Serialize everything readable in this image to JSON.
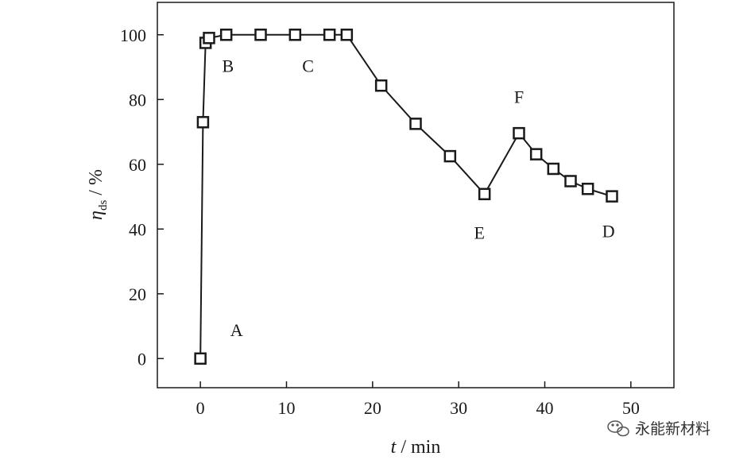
{
  "chart_data": {
    "type": "line",
    "x": [
      0,
      0.3,
      0.6,
      1,
      3,
      7,
      11,
      15,
      17,
      21,
      25,
      29,
      33,
      37,
      39,
      41,
      43,
      45,
      47.8
    ],
    "series": [
      {
        "values": [
          0,
          73,
          97.5,
          99,
          100,
          100,
          100,
          100,
          100,
          84.3,
          72.5,
          62.5,
          50.8,
          69.6,
          63.1,
          58.6,
          54.8,
          52.4,
          50.1
        ]
      }
    ],
    "xlabel": {
      "symbol": "t",
      "unit": " / min"
    },
    "ylabel": {
      "symbol": "η",
      "subscript": "ds",
      "unit": " / %"
    },
    "xlim": [
      -5,
      55
    ],
    "ylim": [
      -9,
      110
    ],
    "xticks": [
      "0",
      "10",
      "20",
      "30",
      "40",
      "50"
    ],
    "yticks": [
      "0",
      "20",
      "40",
      "60",
      "80",
      "100"
    ],
    "annotations": [
      {
        "text": "A",
        "x": 4.2,
        "y": 7
      },
      {
        "text": "B",
        "x": 3.2,
        "y": 88.5
      },
      {
        "text": "C",
        "x": 12.5,
        "y": 88.5
      },
      {
        "text": "E",
        "x": 32.4,
        "y": 37
      },
      {
        "text": "F",
        "x": 37,
        "y": 79
      },
      {
        "text": "D",
        "x": 47.4,
        "y": 37.5
      }
    ],
    "grid": false,
    "marker": "open-square",
    "line_color": "#1a1a1a"
  },
  "watermark": {
    "text": "永能新材料",
    "icon": "wechat-icon"
  }
}
